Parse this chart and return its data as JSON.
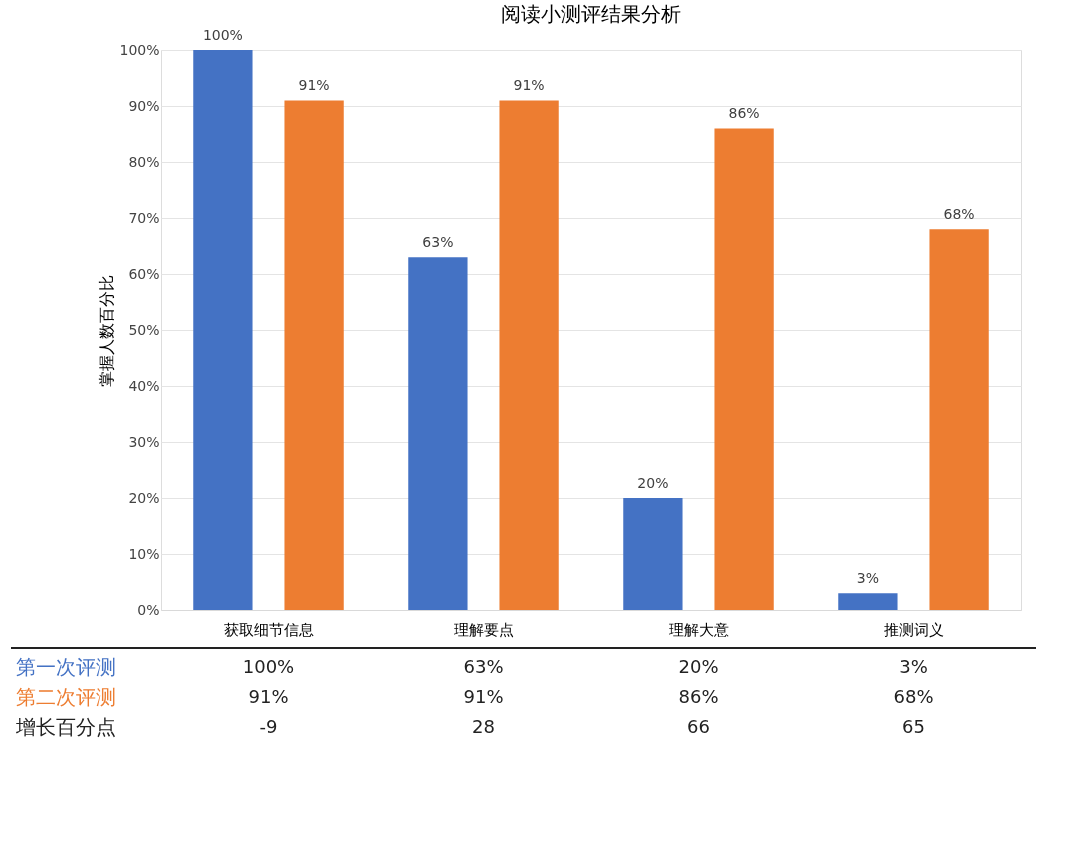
{
  "chart_data": {
    "type": "bar",
    "title": "阅读小测评结果分析",
    "ylabel": "掌握人数百分比",
    "categories": [
      "获取细节信息",
      "理解要点",
      "理解大意",
      "推测词义"
    ],
    "series": [
      {
        "name": "第一次评测",
        "color": "#4472c4",
        "values": [
          100,
          63,
          20,
          3
        ],
        "value_labels": [
          "100%",
          "63%",
          "20%",
          "3%"
        ]
      },
      {
        "name": "第二次评测",
        "color": "#ed7d31",
        "values": [
          91,
          91,
          86,
          68
        ],
        "value_labels": [
          "91%",
          "91%",
          "86%",
          "68%"
        ]
      }
    ],
    "ylim": [
      0,
      100
    ],
    "yticks": [
      {
        "value": 0,
        "label": "0%"
      },
      {
        "value": 10,
        "label": "10%"
      },
      {
        "value": 20,
        "label": "20%"
      },
      {
        "value": 30,
        "label": "30%"
      },
      {
        "value": 40,
        "label": "40%"
      },
      {
        "value": 50,
        "label": "50%"
      },
      {
        "value": 60,
        "label": "60%"
      },
      {
        "value": 70,
        "label": "70%"
      },
      {
        "value": 80,
        "label": "80%"
      },
      {
        "value": 90,
        "label": "90%"
      },
      {
        "value": 100,
        "label": "100%"
      }
    ],
    "grid": "y",
    "legend": false,
    "annotations": [
      "增长百分点",
      "-9",
      "28",
      "66",
      "65"
    ]
  }
}
